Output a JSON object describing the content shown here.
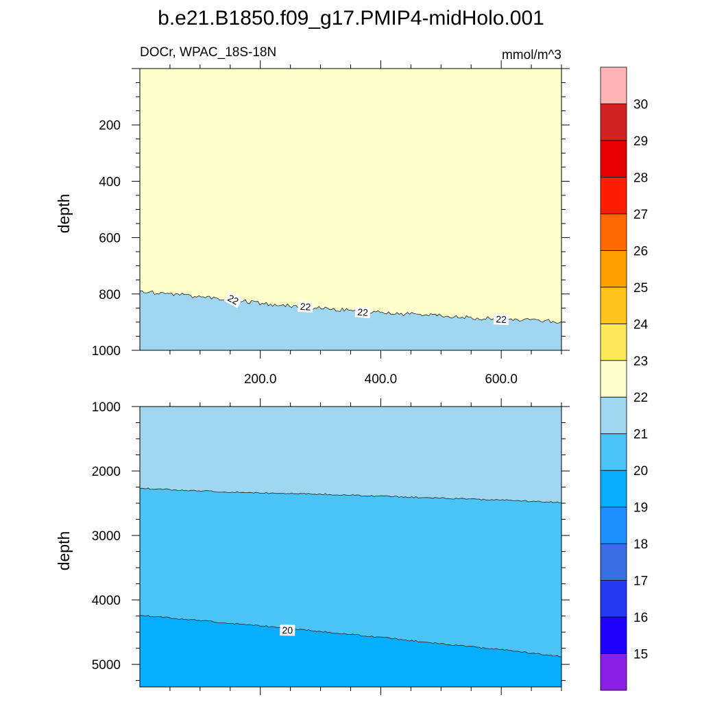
{
  "figure": {
    "title": "b.e21.B1850.f09_g17.PMIP4-midHolo.001",
    "variable_label": "DOCr, WPAC_18S-18N",
    "units_label": "mmol/m^3"
  },
  "colorbar": {
    "levels": [
      15,
      16,
      17,
      18,
      19,
      20,
      21,
      22,
      23,
      24,
      25,
      26,
      27,
      28,
      29,
      30
    ],
    "colors": [
      "#8C1EE6",
      "#1E00FF",
      "#233BF0",
      "#3A6FE3",
      "#1E90FF",
      "#08AEFE",
      "#4CC3F5",
      "#A0D6EF",
      "#FFFFCC",
      "#FFE958",
      "#FFC51C",
      "#FF9F00",
      "#FF6900",
      "#FF1E00",
      "#E60000",
      "#D42323",
      "#FFB3B3"
    ]
  },
  "chart_data": [
    {
      "type": "contour",
      "panel": "upper",
      "xlim": [
        0,
        700
      ],
      "ylim": [
        1000,
        0
      ],
      "ylabel": "depth",
      "xticks": [
        200,
        400,
        600
      ],
      "xtick_labels": [
        "200.0",
        "400.0",
        "600.0"
      ],
      "yticks": [
        200,
        400,
        600,
        800,
        1000
      ],
      "ytick_labels": [
        "200",
        "400",
        "600",
        "800",
        "1000"
      ],
      "fills": [
        {
          "range": [
            22,
            23
          ],
          "color": "#FFFFCC",
          "region": "above"
        },
        {
          "range": [
            21,
            22
          ],
          "color": "#A0D6EF",
          "region": "below"
        }
      ],
      "contour_lines": [
        {
          "level": 22,
          "x": [
            0,
            50,
            100,
            150,
            200,
            250,
            300,
            350,
            400,
            450,
            500,
            550,
            600,
            650,
            700
          ],
          "depth": [
            790,
            800,
            810,
            820,
            832,
            843,
            850,
            858,
            866,
            872,
            878,
            885,
            890,
            895,
            898
          ]
        }
      ],
      "contour_labels": [
        {
          "text": "22",
          "x": 155,
          "depth": 820
        },
        {
          "text": "22",
          "x": 275,
          "depth": 845
        },
        {
          "text": "22",
          "x": 370,
          "depth": 865
        },
        {
          "text": "22",
          "x": 600,
          "depth": 890
        }
      ]
    },
    {
      "type": "contour",
      "panel": "lower",
      "xlim": [
        0,
        700
      ],
      "ylim": [
        5350,
        1000
      ],
      "ylabel": "depth",
      "xticks": [
        200,
        400,
        600
      ],
      "yticks": [
        1000,
        2000,
        3000,
        4000,
        5000
      ],
      "ytick_labels": [
        "1000",
        "2000",
        "3000",
        "4000",
        "5000"
      ],
      "fills": [
        {
          "range": [
            21,
            22
          ],
          "color": "#A0D6EF"
        },
        {
          "range": [
            20,
            21
          ],
          "color": "#4CC3F5"
        },
        {
          "range": [
            19,
            20
          ],
          "color": "#08AEFE"
        }
      ],
      "contour_lines": [
        {
          "level": 21,
          "x": [
            0,
            100,
            200,
            300,
            400,
            500,
            600,
            700
          ],
          "depth": [
            2270,
            2310,
            2340,
            2360,
            2390,
            2420,
            2450,
            2490
          ]
        },
        {
          "level": 20,
          "x": [
            0,
            100,
            200,
            300,
            400,
            500,
            600,
            700
          ],
          "depth": [
            4240,
            4320,
            4400,
            4490,
            4580,
            4680,
            4770,
            4880
          ]
        }
      ],
      "contour_labels": [
        {
          "text": "20",
          "x": 245,
          "depth": 4470
        }
      ]
    }
  ]
}
